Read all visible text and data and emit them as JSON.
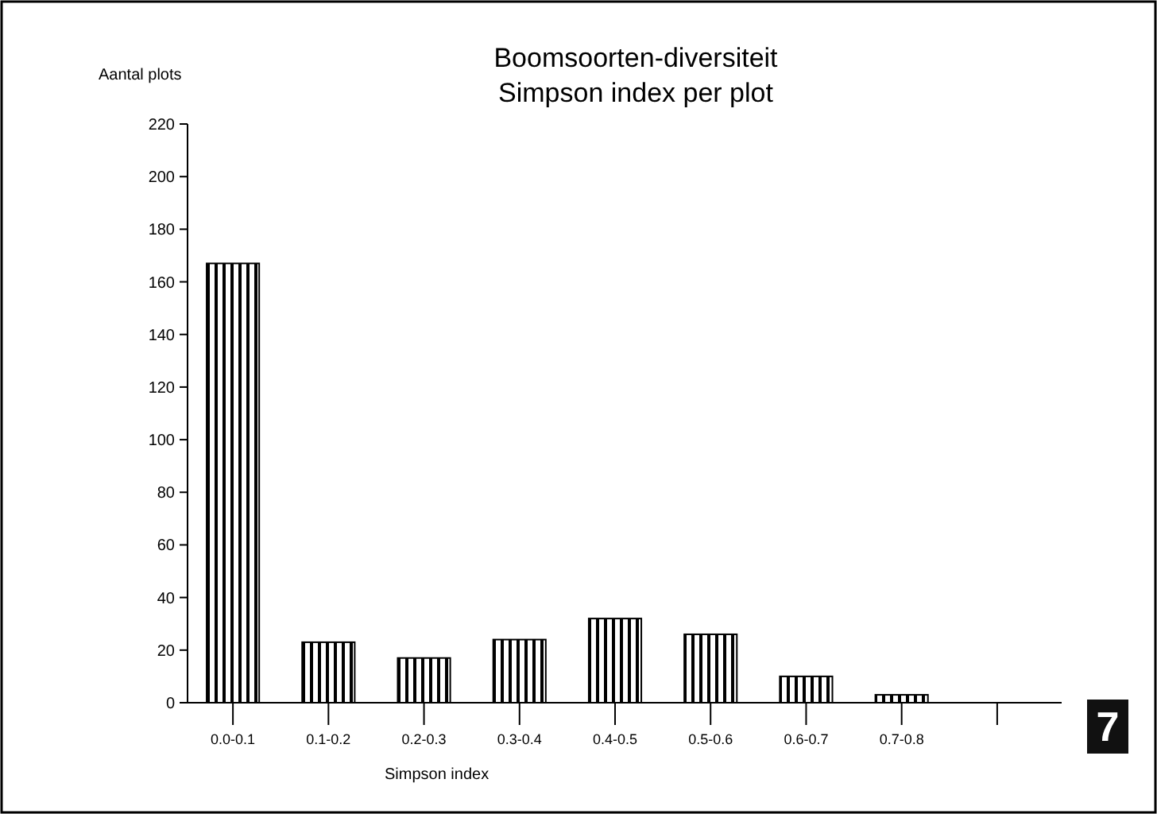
{
  "chart_data": {
    "type": "bar",
    "title": "Boomsoorten-diversiteit",
    "subtitle": "Simpson index per plot",
    "ylabel": "Aantal plots",
    "xlabel": "Simpson index",
    "categories": [
      "0.0-0.1",
      "0.1-0.2",
      "0.2-0.3",
      "0.3-0.4",
      "0.4-0.5",
      "0.5-0.6",
      "0.6-0.7",
      "0.7-0.8",
      null
    ],
    "values": [
      167,
      23,
      17,
      24,
      32,
      26,
      10,
      3,
      null
    ],
    "color": "#000000",
    "ylim": [
      0,
      220
    ],
    "yticks": [
      0,
      20,
      40,
      60,
      80,
      100,
      120,
      140,
      160,
      180,
      200,
      220
    ],
    "grid": false,
    "annotations": [
      "7"
    ]
  }
}
